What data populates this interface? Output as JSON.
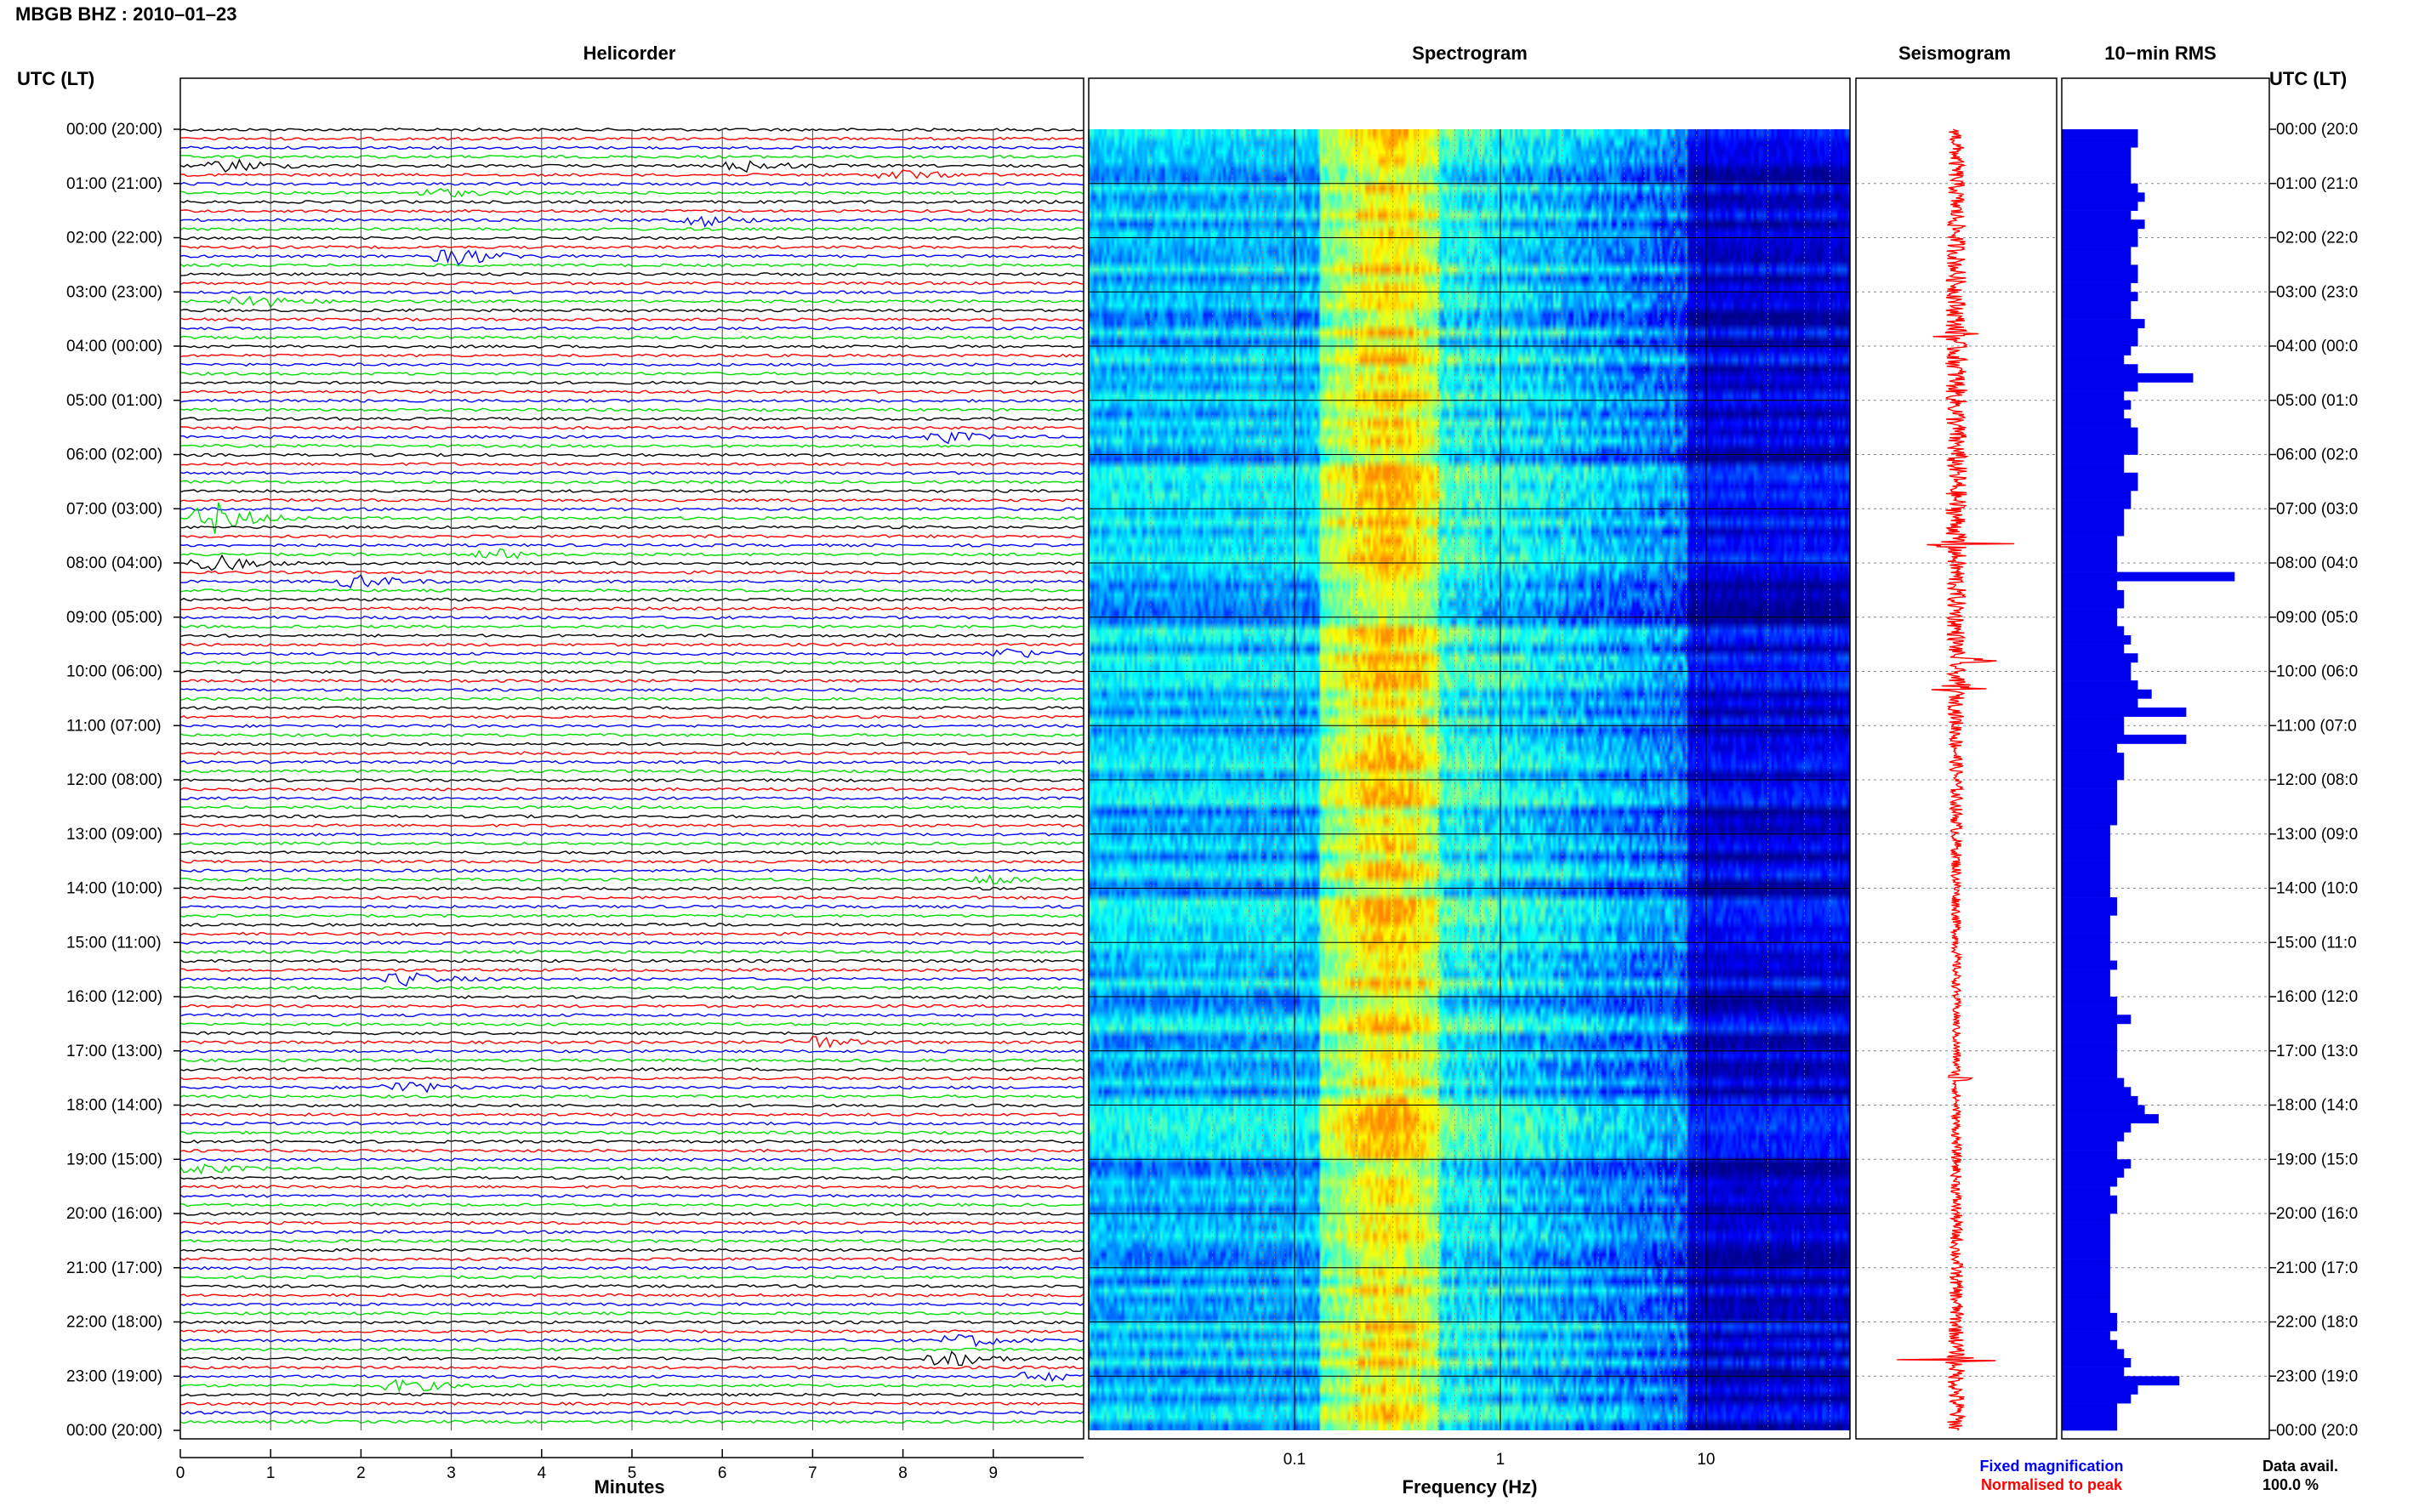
{
  "header": {
    "station": "MBGB BHZ : 2010–01–23",
    "utc_label_left": "UTC (LT)",
    "utc_label_right": "UTC (LT)"
  },
  "panels": {
    "helicorder": "Helicorder",
    "spectrogram": "Spectrogram",
    "seismogram": "Seismogram",
    "rms": "10−min RMS"
  },
  "footer": {
    "minutes_label": "Minutes",
    "frequency_label": "Frequency (Hz)",
    "legend_fixed": "Fixed magnification",
    "legend_normalised": "Normalised to peak",
    "data_avail_label": "Data avail.",
    "data_avail_value": "100.0 %"
  },
  "colors": {
    "trace_cycle": [
      "#000000",
      "#ff0000",
      "#0000ff",
      "#00dd00"
    ],
    "seismogram": "#ff0000",
    "rms_bar": "#0000ee",
    "legend_fixed": "#0000ff",
    "legend_normalised": "#ff0000"
  },
  "time_labels": [
    "00:00 (20:00)",
    "01:00 (21:00)",
    "02:00 (22:00)",
    "03:00 (23:00)",
    "04:00 (00:00)",
    "05:00 (01:00)",
    "06:00 (02:00)",
    "07:00 (03:00)",
    "08:00 (04:00)",
    "09:00 (05:00)",
    "10:00 (06:00)",
    "11:00 (07:00)",
    "12:00 (08:00)",
    "13:00 (09:00)",
    "14:00 (10:00)",
    "15:00 (11:00)",
    "16:00 (12:00)",
    "17:00 (13:00)",
    "18:00 (14:00)",
    "19:00 (15:00)",
    "20:00 (16:00)",
    "21:00 (17:00)",
    "22:00 (18:00)",
    "23:00 (19:00)",
    "00:00 (20:00)"
  ],
  "time_labels_right": [
    "00:00 (20:0",
    "01:00 (21:0",
    "02:00 (22:0",
    "03:00 (23:0",
    "04:00 (00:0",
    "05:00 (01:0",
    "06:00 (02:0",
    "07:00 (03:0",
    "08:00 (04:0",
    "09:00 (05:0",
    "10:00 (06:0",
    "11:00 (07:0",
    "12:00 (08:0",
    "13:00 (09:0",
    "14:00 (10:0",
    "15:00 (11:0",
    "16:00 (12:0",
    "17:00 (13:0",
    "18:00 (14:0",
    "19:00 (15:0",
    "20:00 (16:0",
    "21:00 (17:0",
    "22:00 (18:0",
    "23:00 (19:0",
    "00:00 (20:0"
  ],
  "chart_data": [
    {
      "type": "line",
      "name": "helicorder",
      "title": "Helicorder",
      "xlabel": "Minutes",
      "xlim": [
        0,
        10
      ],
      "x_ticks": [
        "0",
        "1",
        "2",
        "3",
        "4",
        "5",
        "6",
        "7",
        "8",
        "9"
      ],
      "lines_per_hour": 6,
      "line_duration_min": 10,
      "events": [
        {
          "line": 4,
          "minute": 0.6,
          "amp": 2.5
        },
        {
          "line": 4,
          "minute": 6.3,
          "amp": 2.2
        },
        {
          "line": 5,
          "minute": 8.0,
          "amp": 1.8
        },
        {
          "line": 7,
          "minute": 2.9,
          "amp": 1.5
        },
        {
          "line": 10,
          "minute": 5.8,
          "amp": 2.0
        },
        {
          "line": 14,
          "minute": 3.1,
          "amp": 3.5
        },
        {
          "line": 19,
          "minute": 0.8,
          "amp": 3.0
        },
        {
          "line": 34,
          "minute": 8.5,
          "amp": 2.0
        },
        {
          "line": 43,
          "minute": 0.4,
          "amp": 6.0
        },
        {
          "line": 47,
          "minute": 3.5,
          "amp": 2.0
        },
        {
          "line": 48,
          "minute": 0.4,
          "amp": 3.0
        },
        {
          "line": 50,
          "minute": 2.0,
          "amp": 2.5
        },
        {
          "line": 58,
          "minute": 9.2,
          "amp": 2.0
        },
        {
          "line": 83,
          "minute": 9.0,
          "amp": 2.0
        },
        {
          "line": 94,
          "minute": 2.5,
          "amp": 2.5
        },
        {
          "line": 101,
          "minute": 7.0,
          "amp": 2.5
        },
        {
          "line": 106,
          "minute": 2.5,
          "amp": 2.5
        },
        {
          "line": 115,
          "minute": 0.2,
          "amp": 2.0
        },
        {
          "line": 134,
          "minute": 8.7,
          "amp": 2.5
        },
        {
          "line": 136,
          "minute": 8.5,
          "amp": 3.5
        },
        {
          "line": 138,
          "minute": 9.5,
          "amp": 2.0
        },
        {
          "line": 139,
          "minute": 2.5,
          "amp": 2.5
        }
      ]
    },
    {
      "type": "heatmap",
      "name": "spectrogram",
      "title": "Spectrogram",
      "xlabel": "Frequency (Hz)",
      "x_scale": "log",
      "xlim": [
        0.01,
        50
      ],
      "x_tick_labels": [
        "0.1",
        "1",
        "10"
      ],
      "x_tick_values": [
        0.1,
        1,
        10
      ],
      "colormap": [
        "#00008b",
        "#0000ff",
        "#0088ff",
        "#00ffff",
        "#88ff88",
        "#ffff00",
        "#ff8800"
      ]
    },
    {
      "type": "line",
      "name": "seismogram",
      "title": "Seismogram",
      "spikes": [
        {
          "hour": 3.8,
          "amp": 0.6
        },
        {
          "hour": 7.65,
          "amp": 1.0
        },
        {
          "hour": 9.8,
          "amp": 0.4
        },
        {
          "hour": 10.3,
          "amp": 0.5
        },
        {
          "hour": 17.5,
          "amp": 0.3
        },
        {
          "hour": 22.7,
          "amp": 0.6
        }
      ]
    },
    {
      "type": "bar",
      "name": "rms",
      "title": "10−min RMS",
      "orientation": "horizontal",
      "bins_per_hour": 6,
      "values": [
        0.55,
        0.55,
        0.5,
        0.5,
        0.5,
        0.5,
        0.55,
        0.6,
        0.55,
        0.5,
        0.6,
        0.55,
        0.55,
        0.5,
        0.5,
        0.55,
        0.55,
        0.5,
        0.55,
        0.5,
        0.5,
        0.6,
        0.55,
        0.55,
        0.5,
        0.45,
        0.55,
        0.95,
        0.55,
        0.45,
        0.5,
        0.45,
        0.5,
        0.55,
        0.55,
        0.55,
        0.45,
        0.45,
        0.55,
        0.55,
        0.5,
        0.5,
        0.45,
        0.45,
        0.45,
        0.4,
        0.4,
        0.4,
        0.4,
        1.25,
        0.4,
        0.45,
        0.45,
        0.4,
        0.4,
        0.45,
        0.5,
        0.45,
        0.55,
        0.5,
        0.5,
        0.55,
        0.65,
        0.55,
        0.9,
        0.45,
        0.45,
        0.9,
        0.4,
        0.45,
        0.45,
        0.45,
        0.4,
        0.4,
        0.4,
        0.4,
        0.4,
        0.35,
        0.35,
        0.35,
        0.35,
        0.35,
        0.35,
        0.35,
        0.35,
        0.4,
        0.4,
        0.35,
        0.35,
        0.35,
        0.35,
        0.35,
        0.4,
        0.35,
        0.35,
        0.35,
        0.4,
        0.4,
        0.5,
        0.4,
        0.4,
        0.4,
        0.4,
        0.4,
        0.4,
        0.45,
        0.5,
        0.55,
        0.6,
        0.7,
        0.5,
        0.45,
        0.4,
        0.4,
        0.5,
        0.45,
        0.4,
        0.35,
        0.4,
        0.4,
        0.35,
        0.35,
        0.35,
        0.35,
        0.35,
        0.35,
        0.35,
        0.35,
        0.35,
        0.35,
        0.35,
        0.4,
        0.4,
        0.35,
        0.4,
        0.45,
        0.5,
        0.45,
        0.85,
        0.55,
        0.5,
        0.4,
        0.4,
        0.4
      ]
    }
  ]
}
